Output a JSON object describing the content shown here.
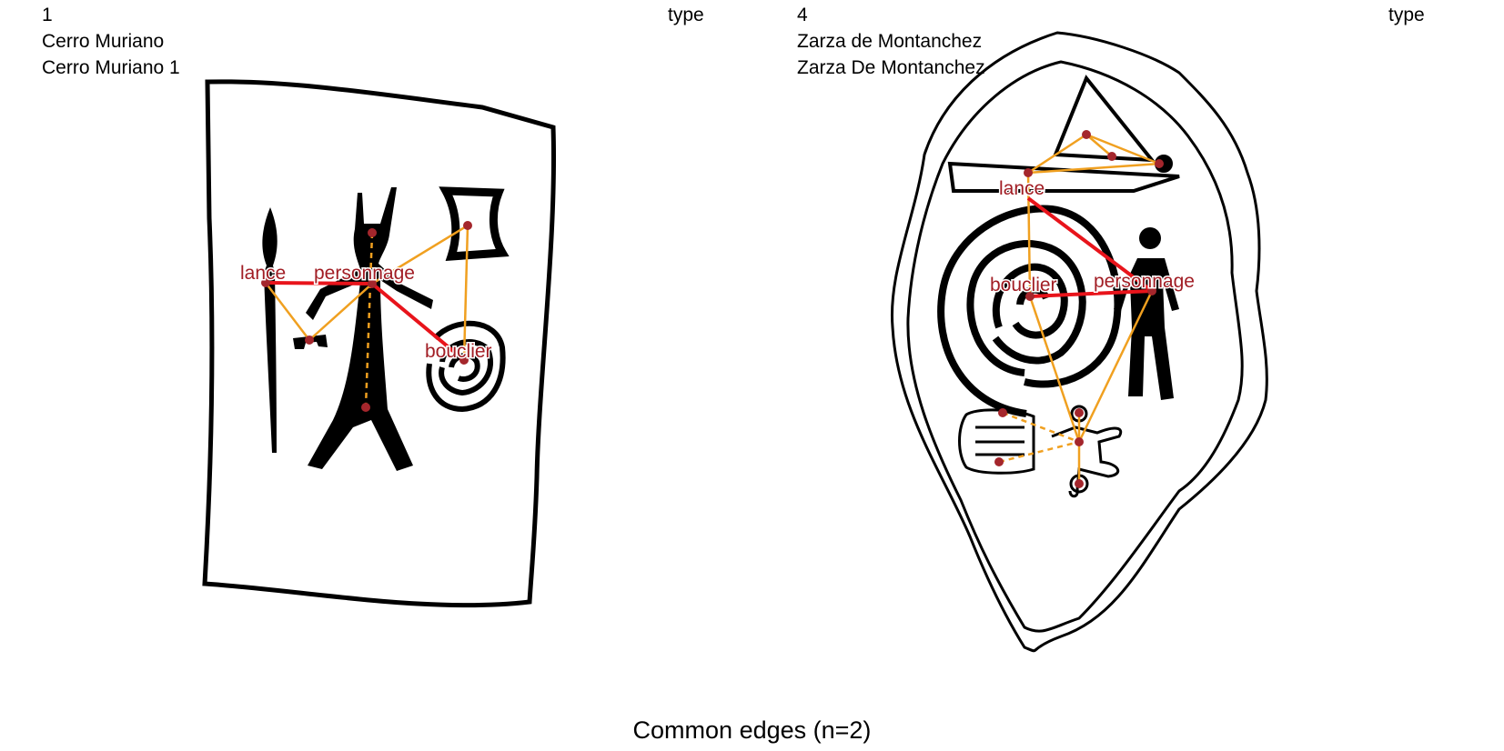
{
  "left": {
    "id": "1",
    "site": "Cerro Muriano",
    "name": "Cerro Muriano 1",
    "type_label": "type",
    "labels": {
      "lance": "lance",
      "personnage": "personnage",
      "bouclier": "bouclier"
    }
  },
  "right": {
    "id": "4",
    "site": "Zarza de Montanchez",
    "name": "Zarza De Montanchez",
    "type_label": "type",
    "labels": {
      "lance": "lance",
      "personnage": "personnage",
      "bouclier": "bouclier"
    }
  },
  "footer": "Common edges (n=2)",
  "colors": {
    "common_edge": "#e8141b",
    "other_edge": "#f0a020",
    "node": "#a4262c",
    "label": "#a11d24"
  }
}
